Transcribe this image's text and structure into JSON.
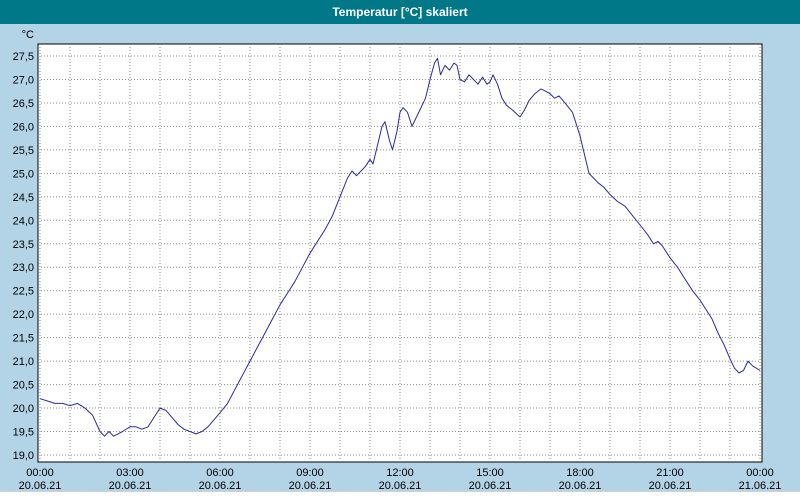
{
  "window": {
    "title": "Temperatur [°C] skaliert"
  },
  "colors": {
    "background": "#b3d4e6",
    "header_bg": "#007888",
    "header_text": "#ffffff",
    "plot_bg": "#ffffff",
    "grid": "#8c8c8c",
    "border": "#000000",
    "line": "#2a2aa0",
    "label_text": "#000000",
    "footer_bg": "#ffffff"
  },
  "chart_data": {
    "type": "line",
    "title": "Temperatur [°C] skaliert",
    "xlabel": "",
    "ylabel": "°C",
    "xlim": [
      0,
      24
    ],
    "ylim": [
      19.0,
      27.5
    ],
    "grid": "dotted",
    "legend": "none",
    "x_grid_interval_hours": 1,
    "y_ticks": [
      {
        "value": 27.5,
        "label": "27,5"
      },
      {
        "value": 27.0,
        "label": "27,0"
      },
      {
        "value": 26.5,
        "label": "26,5"
      },
      {
        "value": 26.0,
        "label": "26,0"
      },
      {
        "value": 25.5,
        "label": "25,5"
      },
      {
        "value": 25.0,
        "label": "25,0"
      },
      {
        "value": 24.5,
        "label": "24,5"
      },
      {
        "value": 24.0,
        "label": "24,0"
      },
      {
        "value": 23.5,
        "label": "23,5"
      },
      {
        "value": 23.0,
        "label": "23,0"
      },
      {
        "value": 22.5,
        "label": "22,5"
      },
      {
        "value": 22.0,
        "label": "22,0"
      },
      {
        "value": 21.5,
        "label": "21,5"
      },
      {
        "value": 21.0,
        "label": "21,0"
      },
      {
        "value": 20.5,
        "label": "20,5"
      },
      {
        "value": 20.0,
        "label": "20,0"
      },
      {
        "value": 19.5,
        "label": "19,5"
      },
      {
        "value": 19.0,
        "label": "19,0"
      }
    ],
    "x_ticks": [
      {
        "hour": 0,
        "time": "00:00",
        "date": "20.06.21"
      },
      {
        "hour": 3,
        "time": "03:00",
        "date": "20.06.21"
      },
      {
        "hour": 6,
        "time": "06:00",
        "date": "20.06.21"
      },
      {
        "hour": 9,
        "time": "09:00",
        "date": "20.06.21"
      },
      {
        "hour": 12,
        "time": "12:00",
        "date": "20.06.21"
      },
      {
        "hour": 15,
        "time": "15:00",
        "date": "20.06.21"
      },
      {
        "hour": 18,
        "time": "18:00",
        "date": "20.06.21"
      },
      {
        "hour": 21,
        "time": "21:00",
        "date": "20.06.21"
      },
      {
        "hour": 24,
        "time": "00:00",
        "date": "21.06.21"
      }
    ],
    "series": [
      {
        "name": "Temperatur [°C]",
        "color": "#2a2aa0",
        "points": [
          [
            0,
            20.2
          ],
          [
            0.25,
            20.15
          ],
          [
            0.5,
            20.1
          ],
          [
            0.75,
            20.1
          ],
          [
            1,
            20.05
          ],
          [
            1.25,
            20.1
          ],
          [
            1.5,
            20.0
          ],
          [
            1.75,
            19.85
          ],
          [
            2,
            19.5
          ],
          [
            2.15,
            19.4
          ],
          [
            2.3,
            19.5
          ],
          [
            2.45,
            19.4
          ],
          [
            2.6,
            19.45
          ],
          [
            2.75,
            19.5
          ],
          [
            3,
            19.6
          ],
          [
            3.2,
            19.6
          ],
          [
            3.4,
            19.55
          ],
          [
            3.6,
            19.6
          ],
          [
            3.8,
            19.8
          ],
          [
            4,
            20.0
          ],
          [
            4.2,
            19.95
          ],
          [
            4.4,
            19.8
          ],
          [
            4.6,
            19.65
          ],
          [
            4.8,
            19.55
          ],
          [
            5,
            19.5
          ],
          [
            5.2,
            19.45
          ],
          [
            5.4,
            19.5
          ],
          [
            5.6,
            19.6
          ],
          [
            5.8,
            19.75
          ],
          [
            6,
            19.9
          ],
          [
            6.25,
            20.1
          ],
          [
            6.5,
            20.4
          ],
          [
            6.75,
            20.7
          ],
          [
            7,
            21.0
          ],
          [
            7.25,
            21.3
          ],
          [
            7.5,
            21.6
          ],
          [
            7.75,
            21.9
          ],
          [
            8,
            22.2
          ],
          [
            8.25,
            22.45
          ],
          [
            8.5,
            22.7
          ],
          [
            8.75,
            23.0
          ],
          [
            9,
            23.3
          ],
          [
            9.25,
            23.55
          ],
          [
            9.5,
            23.8
          ],
          [
            9.75,
            24.1
          ],
          [
            10,
            24.5
          ],
          [
            10.25,
            24.9
          ],
          [
            10.4,
            25.05
          ],
          [
            10.55,
            24.95
          ],
          [
            10.7,
            25.05
          ],
          [
            10.85,
            25.15
          ],
          [
            11,
            25.3
          ],
          [
            11.1,
            25.2
          ],
          [
            11.25,
            25.6
          ],
          [
            11.4,
            26.0
          ],
          [
            11.5,
            26.1
          ],
          [
            11.65,
            25.7
          ],
          [
            11.75,
            25.5
          ],
          [
            11.9,
            25.9
          ],
          [
            12,
            26.3
          ],
          [
            12.1,
            26.4
          ],
          [
            12.25,
            26.3
          ],
          [
            12.4,
            26.0
          ],
          [
            12.55,
            26.2
          ],
          [
            12.7,
            26.4
          ],
          [
            12.85,
            26.6
          ],
          [
            13,
            27.0
          ],
          [
            13.15,
            27.35
          ],
          [
            13.25,
            27.45
          ],
          [
            13.35,
            27.1
          ],
          [
            13.5,
            27.3
          ],
          [
            13.65,
            27.2
          ],
          [
            13.8,
            27.35
          ],
          [
            13.9,
            27.3
          ],
          [
            14,
            27.0
          ],
          [
            14.15,
            26.95
          ],
          [
            14.3,
            27.1
          ],
          [
            14.45,
            27.0
          ],
          [
            14.6,
            26.9
          ],
          [
            14.75,
            27.05
          ],
          [
            14.9,
            26.9
          ],
          [
            15,
            26.95
          ],
          [
            15.1,
            27.1
          ],
          [
            15.25,
            26.9
          ],
          [
            15.4,
            26.6
          ],
          [
            15.55,
            26.45
          ],
          [
            15.75,
            26.35
          ],
          [
            16,
            26.2
          ],
          [
            16.15,
            26.35
          ],
          [
            16.3,
            26.55
          ],
          [
            16.5,
            26.7
          ],
          [
            16.7,
            26.8
          ],
          [
            16.85,
            26.75
          ],
          [
            17,
            26.7
          ],
          [
            17.15,
            26.6
          ],
          [
            17.3,
            26.65
          ],
          [
            17.5,
            26.5
          ],
          [
            17.75,
            26.3
          ],
          [
            18,
            25.8
          ],
          [
            18.15,
            25.4
          ],
          [
            18.3,
            25.0
          ],
          [
            18.45,
            24.9
          ],
          [
            18.6,
            24.8
          ],
          [
            18.8,
            24.7
          ],
          [
            19,
            24.55
          ],
          [
            19.25,
            24.4
          ],
          [
            19.5,
            24.3
          ],
          [
            19.75,
            24.1
          ],
          [
            20,
            23.9
          ],
          [
            20.25,
            23.7
          ],
          [
            20.45,
            23.5
          ],
          [
            20.6,
            23.55
          ],
          [
            20.75,
            23.45
          ],
          [
            21,
            23.2
          ],
          [
            21.25,
            23.0
          ],
          [
            21.5,
            22.75
          ],
          [
            21.75,
            22.5
          ],
          [
            22,
            22.3
          ],
          [
            22.2,
            22.1
          ],
          [
            22.4,
            21.9
          ],
          [
            22.6,
            21.6
          ],
          [
            22.8,
            21.35
          ],
          [
            23,
            21.05
          ],
          [
            23.15,
            20.85
          ],
          [
            23.3,
            20.75
          ],
          [
            23.45,
            20.8
          ],
          [
            23.6,
            21.0
          ],
          [
            23.75,
            20.9
          ],
          [
            24,
            20.8
          ]
        ]
      }
    ]
  }
}
